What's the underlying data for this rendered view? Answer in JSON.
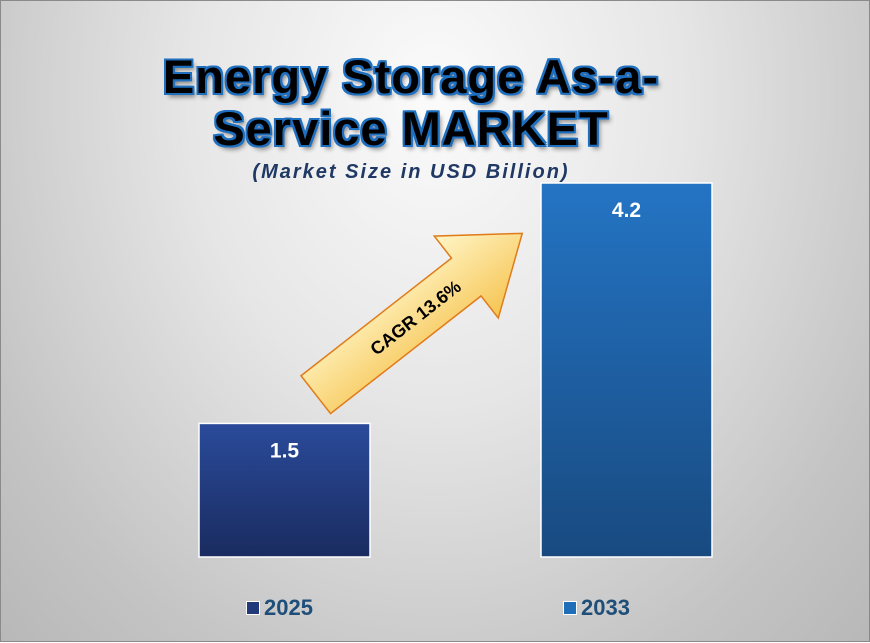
{
  "chart_data": {
    "type": "bar",
    "title": "Energy Storage As-a-Service MARKET",
    "subtitle": "(Market Size in USD Billion)",
    "categories": [
      "2025",
      "2033"
    ],
    "values": [
      1.5,
      4.2
    ],
    "value_labels": [
      "1.5",
      "4.2"
    ],
    "colors": [
      "#22397a",
      "#1f6fb8"
    ],
    "annotation": "CAGR 13.6%",
    "legend": [
      "2025",
      "2033"
    ],
    "legend_position": "bottom",
    "xlabel": "",
    "ylabel": "",
    "ylim": [
      0,
      4.2
    ],
    "grid": false
  }
}
